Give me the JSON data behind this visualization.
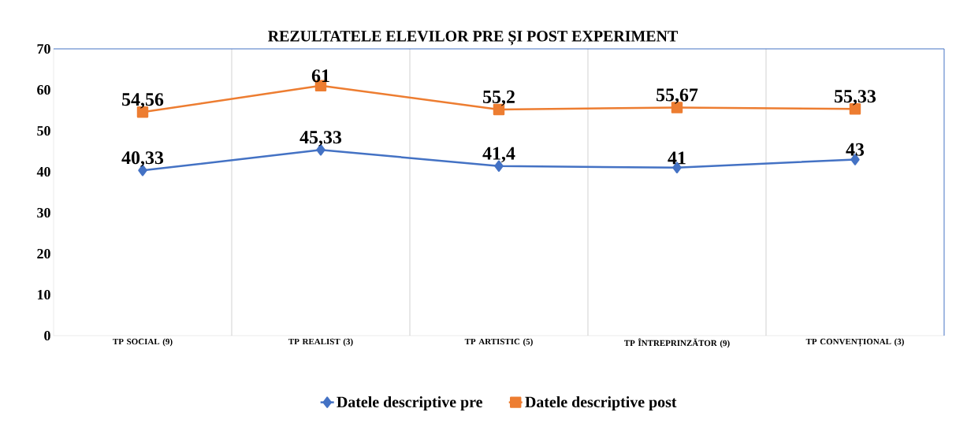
{
  "chart_data": {
    "type": "line",
    "title": "REZULTATELE ELEVILOR PRE ȘI POST EXPERIMENT",
    "categories": [
      "TP SOCIAL (9)",
      "TP REALIST (3)",
      "TP ARTISTIC (5)",
      "TP ÎNTREPRINZĂTOR (9)",
      "TP CONVENȚIONAL (3)"
    ],
    "series": [
      {
        "name": "Datele descriptive pre",
        "color": "#4472c4",
        "marker": "diamond",
        "values": [
          40.33,
          45.33,
          41.4,
          41,
          43
        ],
        "value_labels": [
          "40,33",
          "45,33",
          "41,4",
          "41",
          "43"
        ]
      },
      {
        "name": "Datele descriptive post",
        "color": "#ed7d31",
        "marker": "square",
        "values": [
          54.56,
          61,
          55.2,
          55.67,
          55.33
        ],
        "value_labels": [
          "54,56",
          "61",
          "55,2",
          "55,67",
          "55,33"
        ]
      }
    ],
    "ylim": [
      0,
      70
    ],
    "yticks": [
      0,
      10,
      20,
      30,
      40,
      50,
      60,
      70
    ],
    "grid": "x",
    "legend": "bottom"
  }
}
